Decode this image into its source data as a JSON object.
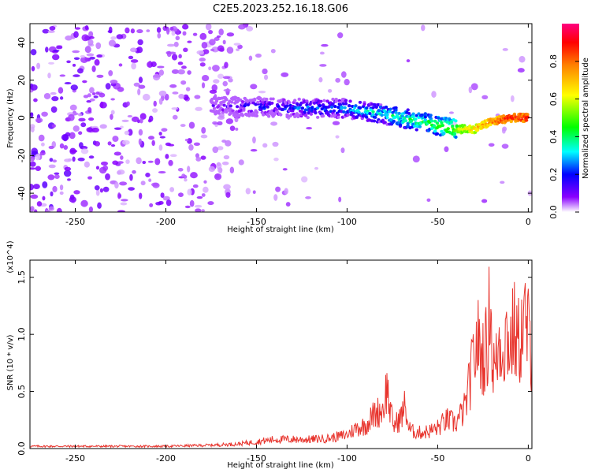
{
  "title": "C2E5.2023.252.16.18.G06",
  "chart_data": [
    {
      "type": "heatmap",
      "xlabel": "Height of straight line (km)",
      "ylabel": "Frequency (Hz)",
      "xlim": [
        -275,
        2
      ],
      "ylim": [
        -50,
        50
      ],
      "xticks": [
        -250,
        -200,
        -150,
        -100,
        -50,
        0
      ],
      "yticks": [
        -40,
        -20,
        0,
        20,
        40
      ],
      "colorbar": {
        "label": "Normalized spectral amplitude",
        "range": [
          0.0,
          1.0
        ],
        "ticks": [
          0.0,
          0.2,
          0.4,
          0.6,
          0.8
        ],
        "colormap": [
          "#ffffff",
          "#8a00ff",
          "#0000ff",
          "#00ffff",
          "#00ff00",
          "#ffff00",
          "#ff8000",
          "#ff0000",
          "#ff0080"
        ]
      },
      "signal_track": [
        {
          "x": -175,
          "y": 6,
          "amplitude": 0.15
        },
        {
          "x": -150,
          "y": 6,
          "amplitude": 0.25
        },
        {
          "x": -125,
          "y": 5,
          "amplitude": 0.3
        },
        {
          "x": -100,
          "y": 5,
          "amplitude": 0.35
        },
        {
          "x": -85,
          "y": 3,
          "amplitude": 0.4
        },
        {
          "x": -70,
          "y": 0,
          "amplitude": 0.45
        },
        {
          "x": -55,
          "y": -3,
          "amplitude": 0.5
        },
        {
          "x": -40,
          "y": -6,
          "amplitude": 0.6
        },
        {
          "x": -30,
          "y": -6,
          "amplitude": 0.75
        },
        {
          "x": -20,
          "y": -2,
          "amplitude": 0.85
        },
        {
          "x": -10,
          "y": 0,
          "amplitude": 0.95
        },
        {
          "x": 0,
          "y": 0,
          "amplitude": 0.95
        }
      ]
    },
    {
      "type": "line",
      "xlabel": "Height of straight line (km)",
      "ylabel": "SNR (10 * v/v)",
      "y_multiplier": "(x10^4)",
      "xlim": [
        -275,
        2
      ],
      "ylim": [
        0,
        1.65
      ],
      "xticks": [
        -250,
        -200,
        -150,
        -100,
        -50,
        0
      ],
      "yticks": [
        0.0,
        0.5,
        1.0,
        1.5
      ],
      "series": [
        {
          "color": "#e8352e",
          "x": [
            -275,
            -250,
            -200,
            -175,
            -160,
            -150,
            -140,
            -130,
            -120,
            -110,
            -100,
            -95,
            -90,
            -85,
            -80,
            -78,
            -76,
            -74,
            -70,
            -68,
            -66,
            -64,
            -60,
            -55,
            -50,
            -45,
            -40,
            -35,
            -32,
            -30,
            -28,
            -26,
            -24,
            -22,
            -21,
            -20,
            -18,
            -16,
            -14,
            -12,
            -10,
            -8,
            -6,
            -4,
            -2,
            0,
            2
          ],
          "y": [
            0.02,
            0.02,
            0.02,
            0.03,
            0.04,
            0.06,
            0.08,
            0.08,
            0.08,
            0.09,
            0.12,
            0.18,
            0.2,
            0.3,
            0.35,
            0.55,
            0.3,
            0.2,
            0.28,
            0.38,
            0.18,
            0.15,
            0.14,
            0.15,
            0.18,
            0.25,
            0.22,
            0.35,
            0.6,
            0.8,
            0.95,
            0.8,
            0.85,
            0.9,
            1.6,
            0.75,
            0.7,
            0.95,
            0.9,
            1.0,
            0.9,
            1.05,
            0.9,
            1.0,
            1.1,
            1.0,
            0.85
          ]
        }
      ]
    }
  ]
}
